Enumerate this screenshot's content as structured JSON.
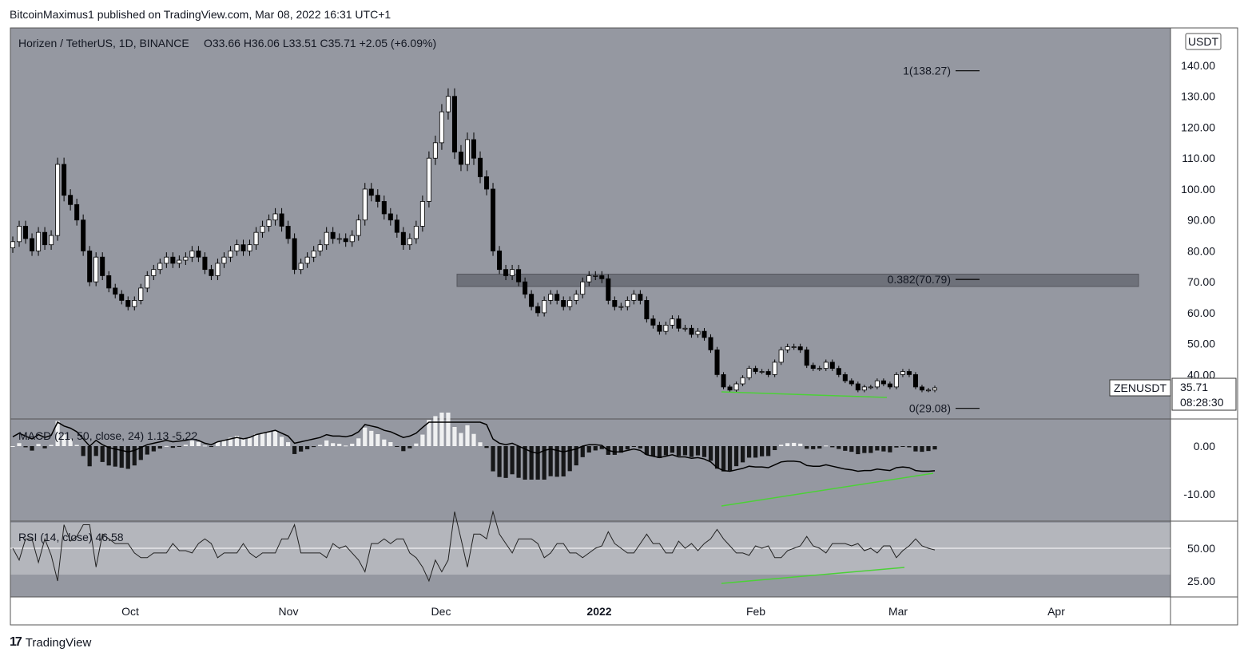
{
  "header": {
    "published": "BitcoinMaximus1 published on TradingView.com, Mar 08, 2022 16:31 UTC+1"
  },
  "footer": {
    "brand": "TradingView"
  },
  "colors": {
    "panel_bg": "#9598a1",
    "bull": "#ffffff",
    "bear": "#000000",
    "divergence": "#4cd137",
    "resistance": "#6e717a",
    "rsi_band": "#b4b6bc"
  },
  "chart_data": [
    {
      "type": "candlestick",
      "title": "Horizen / TetherUS, 1D, BINANCE",
      "ohlc_text": {
        "o": "O33.66",
        "h": "H36.06",
        "l": "L33.51",
        "c": "C35.71",
        "chg": "+2.05 (+6.09%)"
      },
      "currency": "USDT",
      "ylim": [
        29,
        150
      ],
      "y_ticks": [
        "140.00",
        "130.00",
        "120.00",
        "110.00",
        "100.00",
        "90.00",
        "80.00",
        "70.00",
        "60.00",
        "50.00",
        "40.00"
      ],
      "x_ticks": [
        "Oct",
        "Nov",
        "Dec",
        "2022",
        "Feb",
        "Mar",
        "Apr"
      ],
      "symbol_label": "ZENUSDT",
      "last_price": "35.71",
      "countdown": "08:28:30",
      "fib_levels": [
        {
          "label": "1(138.27)",
          "value": 138.27
        },
        {
          "label": "0.382(70.79)",
          "value": 70.79
        },
        {
          "label": "0(29.08)",
          "value": 29.08
        }
      ],
      "resistance_zone": [
        68.5,
        72.5
      ],
      "closes": [
        83,
        88,
        84,
        80,
        86,
        82,
        85,
        108,
        98,
        95,
        90,
        80,
        70,
        78,
        72,
        68,
        66,
        64,
        62,
        64,
        68,
        72,
        74,
        76,
        78,
        76,
        77,
        78,
        80,
        78,
        74,
        72,
        76,
        78,
        80,
        82,
        80,
        82,
        86,
        88,
        90,
        92,
        88,
        84,
        74,
        76,
        78,
        80,
        82,
        86,
        84,
        84,
        83,
        85,
        90,
        100,
        98,
        96,
        92,
        90,
        86,
        82,
        84,
        88,
        96,
        110,
        115,
        125,
        130,
        112,
        108,
        116,
        110,
        104,
        100,
        80,
        74,
        72,
        74,
        70,
        66,
        62,
        60,
        64,
        66,
        64,
        62,
        64,
        66,
        70,
        72,
        72,
        71,
        64,
        62,
        62,
        64,
        66,
        64,
        58,
        56,
        54,
        56,
        58,
        55,
        55,
        53,
        54,
        52,
        48,
        40,
        36,
        35,
        37,
        39,
        42,
        41,
        41,
        40,
        44,
        48,
        49,
        49,
        48,
        43,
        42,
        42,
        44,
        42,
        40,
        38,
        37,
        35,
        36,
        36,
        38,
        37,
        36,
        40,
        41,
        40,
        36,
        35,
        35,
        35.71
      ],
      "panel_labels": {
        "macd": "MACD (21, 50, close, 24)",
        "macd_v1": "1.13",
        "macd_v2": "-5.22",
        "rsi": "RSI (14, close)",
        "rsi_v": "46.58"
      },
      "macd_ticks": [
        "0.00",
        "-10.00"
      ],
      "rsi_ticks": [
        "50.00",
        "25.00"
      ]
    }
  ]
}
